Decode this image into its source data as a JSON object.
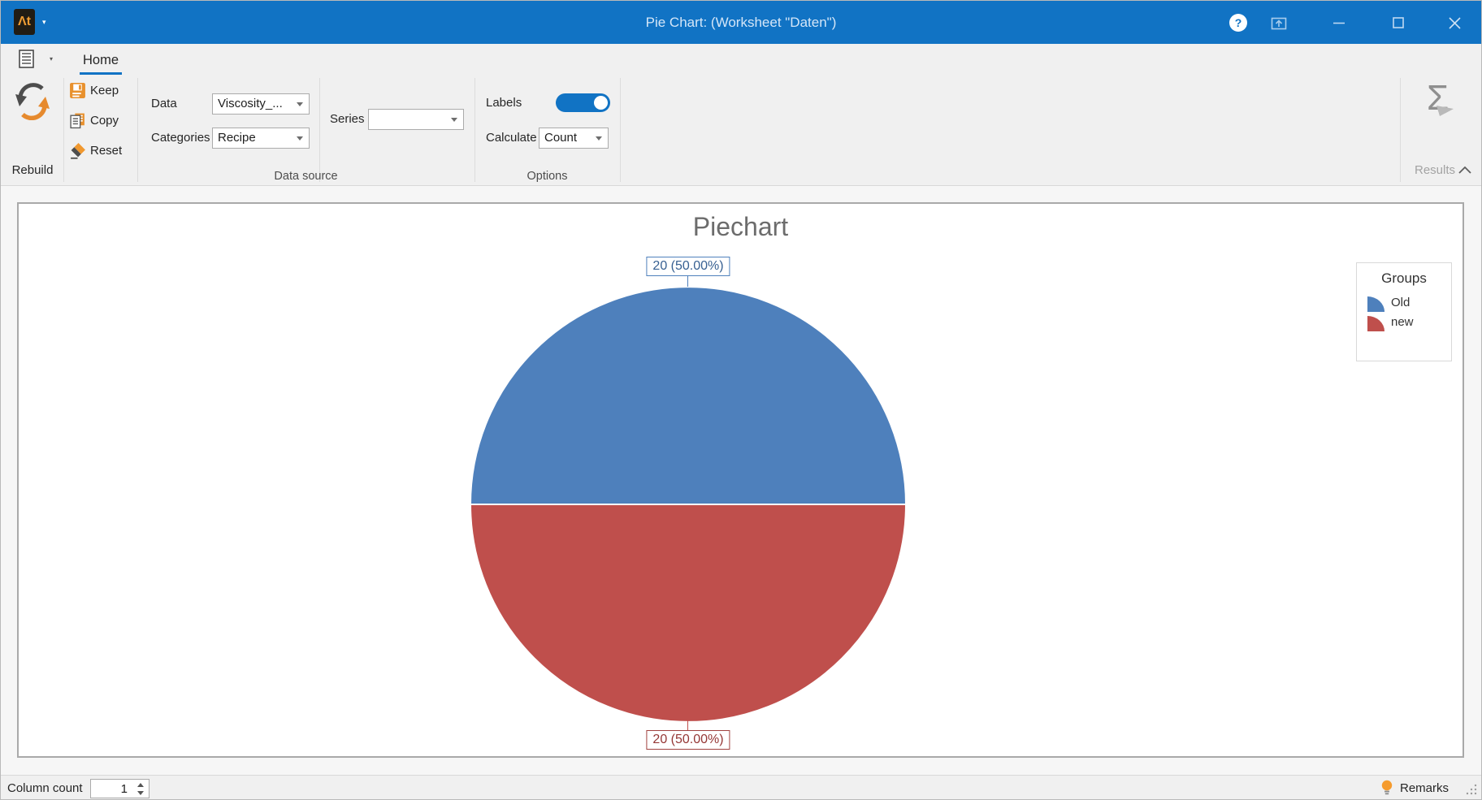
{
  "colors": {
    "accent": "#1173C4"
  },
  "titlebar": {
    "logo": "Ʌt",
    "title": "Pie Chart:  (Worksheet \"Daten\")",
    "help_glyph": "?"
  },
  "ribbon": {
    "tab_home": "Home",
    "rebuild_label": "Rebuild",
    "keep_label": "Keep",
    "copy_label": "Copy",
    "reset_label": "Reset",
    "data_label": "Data",
    "data_value": "Viscosity_...",
    "categories_label": "Categories",
    "categories_value": "Recipe",
    "series_label": "Series",
    "series_value": "",
    "labels_label": "Labels",
    "labels_state": "on",
    "calculate_label": "Calculate",
    "calculate_value": "Count",
    "group_data_source": "Data source",
    "group_options": "Options",
    "results_label": "Results"
  },
  "chart_data": {
    "type": "pie",
    "title": "Piechart",
    "legend_title": "Groups",
    "legend_position": "right",
    "categories": [
      "Old",
      "new"
    ],
    "values": [
      20,
      20
    ],
    "percentages": [
      50,
      50
    ],
    "slice_labels": [
      "20 (50.00%)",
      "20 (50.00%)"
    ],
    "colors": [
      "#4E80BC",
      "#BF4F4C"
    ],
    "label_text_colors": [
      "#376092",
      "#953735"
    ],
    "label_border_colors": [
      "#4F81BC",
      "#A0423F"
    ]
  },
  "statusbar": {
    "column_count_label": "Column count",
    "column_count_value": "1",
    "remarks_label": "Remarks"
  }
}
